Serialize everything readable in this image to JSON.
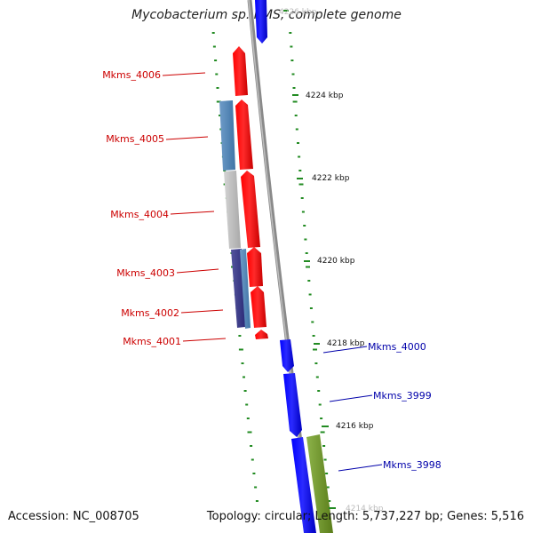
{
  "title": "Mycobacterium sp. KMS, complete genome",
  "footer": {
    "accession": "Accession: NC_008705",
    "summary": "Topology: circular; Length: 5,737,227 bp; Genes: 5,516"
  },
  "colors": {
    "forward_cds": "#ff0000",
    "reverse_cds": "#0000ff",
    "backbone": "#8a8a8a",
    "label_forward": "#cc0000",
    "label_reverse": "#0000aa",
    "tick": "#228b22",
    "feature_blue": "#4f87b8",
    "feature_gray": "#c0c0c0",
    "feature_navy": "#3a3a8c",
    "feature_olive": "#6b8e23"
  },
  "scale_labels": [
    "4226 kbp",
    "4224 kbp",
    "4222 kbp",
    "4220 kbp",
    "4218 kbp",
    "4216 kbp",
    "4214 kbp"
  ],
  "forward_genes": [
    "Mkms_4006",
    "Mkms_4005",
    "Mkms_4004",
    "Mkms_4003",
    "Mkms_4002",
    "Mkms_4001"
  ],
  "reverse_genes": [
    "Mkms_4000",
    "Mkms_3999",
    "Mkms_3998"
  ]
}
